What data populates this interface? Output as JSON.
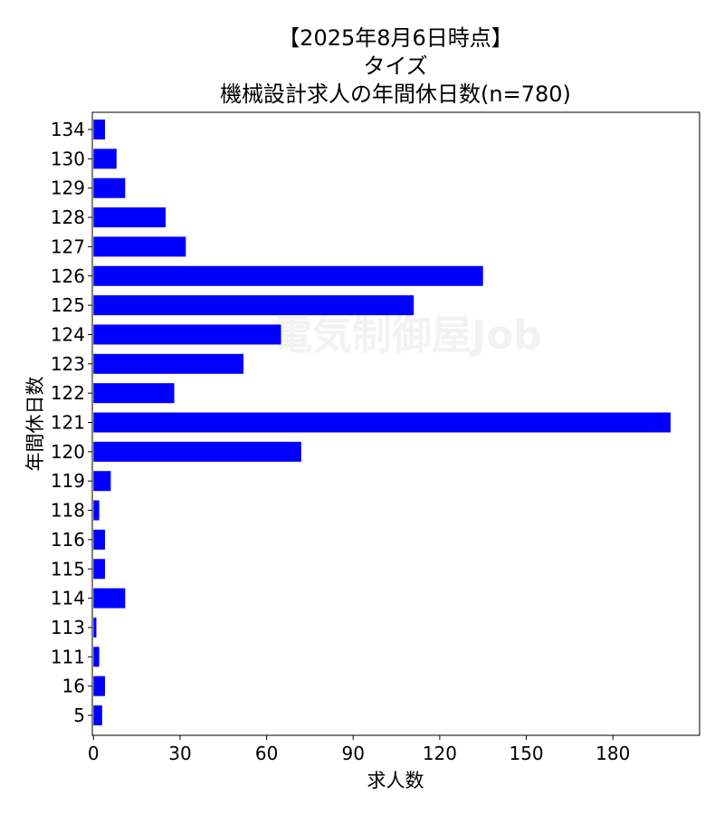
{
  "chart_data": {
    "type": "bar",
    "orientation": "horizontal",
    "title_lines": [
      "【2025年8月6日時点】",
      "タイズ",
      "機械設計求人の年間休日数(n=780)"
    ],
    "xlabel": "求人数",
    "ylabel": "年間休日数",
    "categories": [
      "134",
      "130",
      "129",
      "128",
      "127",
      "126",
      "125",
      "124",
      "123",
      "122",
      "121",
      "120",
      "119",
      "118",
      "116",
      "115",
      "114",
      "113",
      "111",
      "16",
      "5"
    ],
    "values": [
      4,
      8,
      11,
      25,
      32,
      135,
      111,
      65,
      52,
      28,
      200,
      72,
      6,
      2,
      4,
      4,
      11,
      1,
      2,
      4,
      3
    ],
    "xlim": [
      0,
      210
    ],
    "xticks": [
      0,
      30,
      60,
      90,
      120,
      150,
      180
    ],
    "bar_color": "#0000ff",
    "grid": false,
    "legend": false,
    "watermark": "電気制御屋Job"
  }
}
